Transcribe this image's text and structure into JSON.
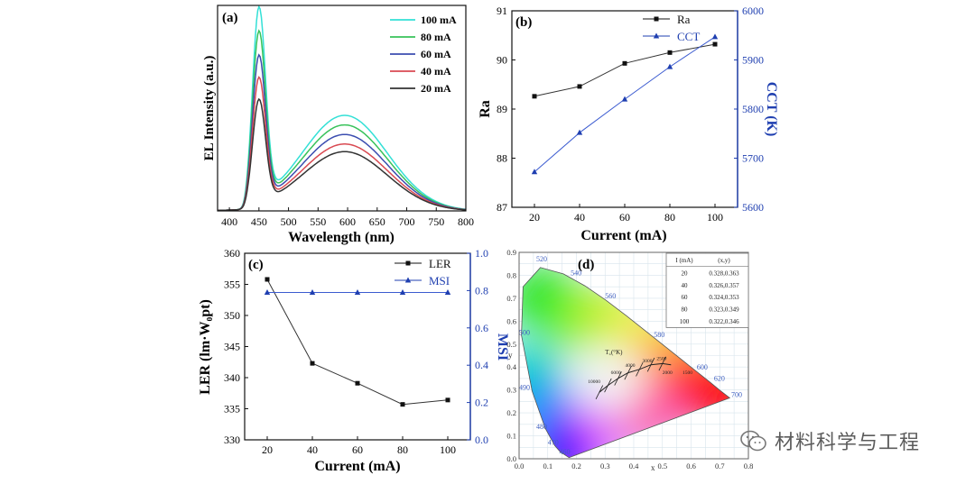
{
  "watermark": {
    "text": "材料科学与工程",
    "icon": "wechat-icon"
  },
  "colors": {
    "cct": "#1f3fb0",
    "black": "#111111"
  },
  "chart_data": [
    {
      "panel": "(a)",
      "type": "line",
      "xlabel": "Wavelength (nm)",
      "ylabel": "EL Intensity (a.u.)",
      "xlim": [
        380,
        800
      ],
      "xticks": [
        "400",
        "450",
        "500",
        "550",
        "600",
        "650",
        "700",
        "750",
        "800"
      ],
      "legend_position": "top-right",
      "series": [
        {
          "name": "100 mA",
          "color": "#33e0d6",
          "peak": 1.0,
          "broad": 0.5
        },
        {
          "name": "80 mA",
          "color": "#38c25a",
          "peak": 0.88,
          "broad": 0.45
        },
        {
          "name": "60 mA",
          "color": "#3b4db0",
          "peak": 0.76,
          "broad": 0.4
        },
        {
          "name": "40 mA",
          "color": "#d94a52",
          "peak": 0.65,
          "broad": 0.35
        },
        {
          "name": "20 mA",
          "color": "#333333",
          "peak": 0.54,
          "broad": 0.31
        }
      ]
    },
    {
      "panel": "(b)",
      "type": "line",
      "xlabel": "Current (mA)",
      "ylabel": "Ra",
      "y2label": "CCT (K)",
      "x": [
        20,
        40,
        60,
        80,
        100
      ],
      "xticks": [
        "20",
        "40",
        "60",
        "80",
        "100"
      ],
      "ylim": [
        87,
        91
      ],
      "yticks": [
        "87",
        "88",
        "89",
        "90",
        "91"
      ],
      "y2lim": [
        5600,
        6000
      ],
      "y2ticks": [
        "5600",
        "5700",
        "5800",
        "5900",
        "6000"
      ],
      "legend_position": "top-left",
      "series": [
        {
          "name": "Ra",
          "axis": "left",
          "marker": "square",
          "values": [
            89.26,
            89.46,
            89.93,
            90.15,
            90.32
          ]
        },
        {
          "name": "CCT",
          "axis": "right",
          "marker": "triangle",
          "values": [
            5672,
            5752,
            5820,
            5886,
            5947
          ]
        }
      ]
    },
    {
      "panel": "(c)",
      "type": "line",
      "xlabel": "Current (mA)",
      "ylabel": "LER (lm·W₀pt)",
      "y2label": "MSI",
      "x": [
        20,
        40,
        60,
        80,
        100
      ],
      "xticks": [
        "20",
        "40",
        "60",
        "80",
        "100"
      ],
      "ylim": [
        330,
        360
      ],
      "yticks": [
        "330",
        "335",
        "340",
        "345",
        "350",
        "355",
        "360"
      ],
      "y2lim": [
        0,
        1.0
      ],
      "y2ticks": [
        "0.0",
        "0.2",
        "0.4",
        "0.6",
        "0.8",
        "1.0"
      ],
      "legend_position": "top-right",
      "series": [
        {
          "name": "LER",
          "axis": "left",
          "marker": "square",
          "values": [
            355.8,
            342.3,
            339.1,
            335.7,
            336.4
          ]
        },
        {
          "name": "MSI",
          "axis": "right",
          "marker": "triangle",
          "values": [
            0.79,
            0.79,
            0.79,
            0.79,
            0.79
          ]
        }
      ]
    },
    {
      "panel": "(d)",
      "type": "scatter",
      "xlabel": "x",
      "ylabel": "y",
      "xlim": [
        0,
        0.8
      ],
      "ylim": [
        0,
        0.9
      ],
      "xticks": [
        "0.0",
        "0.1",
        "0.2",
        "0.3",
        "0.4",
        "0.5",
        "0.6",
        "0.7",
        "0.8"
      ],
      "yticks": [
        "0.0",
        "0.1",
        "0.2",
        "0.3",
        "0.4",
        "0.5",
        "0.6",
        "0.7",
        "0.8",
        "0.9"
      ],
      "wavelength_labels": [
        "460",
        "470",
        "480",
        "490",
        "500",
        "520",
        "540",
        "560",
        "580",
        "600",
        "620",
        "700"
      ],
      "planckian_label": "T꜀(°K)",
      "cct_labels": [
        "10000",
        "6000",
        "4000",
        "3000",
        "2500",
        "2000",
        "1500"
      ],
      "table": {
        "headers": [
          "I (mA)",
          "(x,y)"
        ],
        "rows": [
          [
            "20",
            "0.328,0.363"
          ],
          [
            "40",
            "0.326,0.357"
          ],
          [
            "60",
            "0.324,0.353"
          ],
          [
            "80",
            "0.323,0.349"
          ],
          [
            "100",
            "0.322,0.346"
          ]
        ]
      }
    }
  ]
}
